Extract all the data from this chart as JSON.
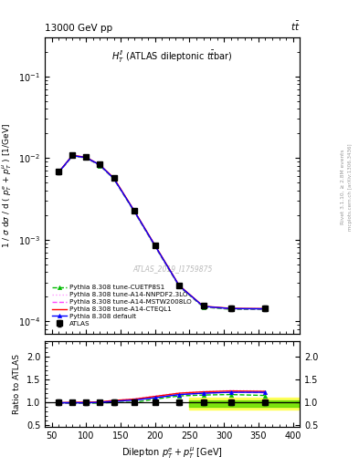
{
  "title_left": "13000 GeV pp",
  "title_right": "tt",
  "annotation": "H_T^{ll} (ATLAS dileptonic ttbar)",
  "watermark": "ATLAS_2019_I1759875",
  "xlabel": "Dilepton $p_T^e + p_T^{\\mu}$ [GeV]",
  "ylabel": "1 / $\\sigma$ d$\\sigma$ / d ( $p_T^e$ + $p_T^{\\mu}$ ) [1/GeV]",
  "ratio_ylabel": "Ratio to ATLAS",
  "xlim": [
    40,
    410
  ],
  "ylim_main": [
    7e-05,
    0.3
  ],
  "ylim_ratio": [
    0.45,
    2.35
  ],
  "ratio_yticks": [
    0.5,
    1.0,
    1.5,
    2.0
  ],
  "data_x": [
    60,
    80,
    100,
    120,
    140,
    170,
    200,
    235,
    270,
    310,
    360
  ],
  "data_y": [
    0.00675,
    0.0108,
    0.0102,
    0.0083,
    0.0057,
    0.00225,
    0.00085,
    0.000275,
    0.000155,
    0.000145,
    0.000145
  ],
  "data_yerr_lo": [
    0.0004,
    0.0005,
    0.0005,
    0.0004,
    0.0003,
    0.0001,
    4e-05,
    1.5e-05,
    1e-05,
    1e-05,
    1e-05
  ],
  "data_yerr_hi": [
    0.0004,
    0.0005,
    0.0005,
    0.0004,
    0.0003,
    0.0001,
    4e-05,
    1.5e-05,
    1e-05,
    1e-05,
    1e-05
  ],
  "pythia_default_y": [
    0.00668,
    0.0107,
    0.0101,
    0.0082,
    0.0056,
    0.00222,
    0.00084,
    0.000272,
    0.000152,
    0.000143,
    0.000142
  ],
  "pythia_cteql1_y": [
    0.0067,
    0.0108,
    0.0102,
    0.0082,
    0.0057,
    0.00224,
    0.00085,
    0.000274,
    0.000153,
    0.000144,
    0.000143
  ],
  "pythia_mstw_y": [
    0.0066,
    0.01065,
    0.01005,
    0.0081,
    0.0056,
    0.00221,
    0.00083,
    0.00027,
    0.000151,
    0.000142,
    0.000141
  ],
  "pythia_nnpdf_y": [
    0.00672,
    0.01075,
    0.01015,
    0.00815,
    0.00562,
    0.00222,
    0.000835,
    0.000272,
    0.000152,
    0.000143,
    0.000142
  ],
  "pythia_cuetp8s1_y": [
    0.00658,
    0.01058,
    0.00998,
    0.00805,
    0.00555,
    0.00218,
    0.000822,
    0.000267,
    0.000149,
    0.00014,
    0.000139
  ],
  "pythia_default_color": "#0000ff",
  "pythia_cteql1_color": "#ff0000",
  "pythia_mstw_color": "#ff44ff",
  "pythia_nnpdf_color": "#ff99ff",
  "pythia_cuetp8s1_color": "#00bb00",
  "ratio_default": [
    0.99,
    0.99,
    0.99,
    1.0,
    1.02,
    1.05,
    1.1,
    1.17,
    1.2,
    1.22,
    1.22
  ],
  "ratio_cteql1": [
    0.99,
    1.0,
    1.0,
    1.01,
    1.04,
    1.07,
    1.13,
    1.2,
    1.23,
    1.25,
    1.24
  ],
  "ratio_mstw": [
    0.98,
    0.99,
    0.985,
    1.0,
    1.03,
    1.05,
    1.1,
    1.17,
    1.2,
    1.22,
    1.21
  ],
  "ratio_nnpdf": [
    0.995,
    0.995,
    0.995,
    1.01,
    1.04,
    1.08,
    1.14,
    1.21,
    1.24,
    1.26,
    1.25
  ],
  "ratio_cuetp8s1": [
    0.975,
    0.978,
    0.978,
    0.985,
    0.995,
    1.0,
    1.07,
    1.14,
    1.16,
    1.17,
    1.15
  ],
  "band_yellow_xstart": 250,
  "band_yellow_xend": 410,
  "band_yellow_ylo": 0.84,
  "band_yellow_yhi": 1.1,
  "band_green_xstart": 250,
  "band_green_xend": 410,
  "band_green_ylo": 0.9,
  "band_green_yhi": 1.05
}
